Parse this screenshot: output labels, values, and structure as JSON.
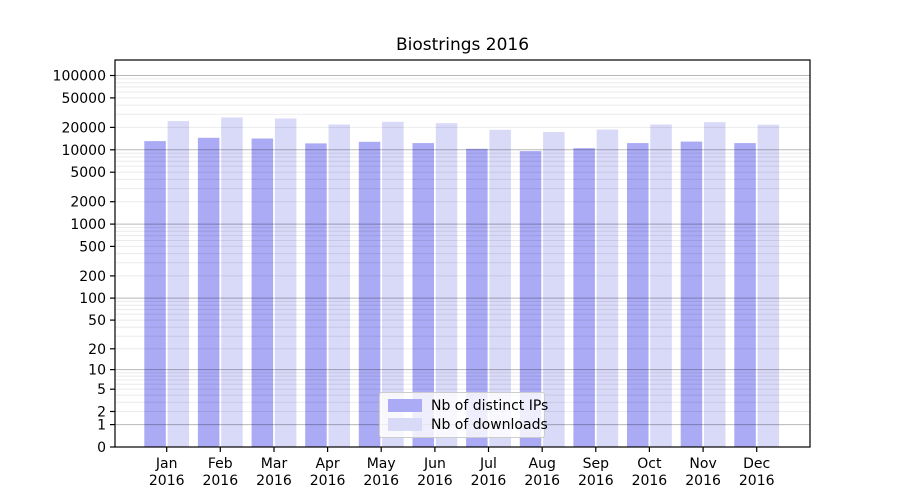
{
  "chart_data": {
    "type": "bar",
    "title": "Biostrings 2016",
    "categories": [
      "Jan",
      "Feb",
      "Mar",
      "Apr",
      "May",
      "Jun",
      "Jul",
      "Aug",
      "Sep",
      "Oct",
      "Nov",
      "Dec"
    ],
    "year": "2016",
    "series": [
      {
        "name": "Nb of distinct IPs",
        "color": "#aaaaf5",
        "values": [
          13100,
          14500,
          14200,
          12200,
          12800,
          12300,
          10300,
          9600,
          10500,
          12300,
          12900,
          12300
        ]
      },
      {
        "name": "Nb of downloads",
        "color": "#d9d9f8",
        "values": [
          24300,
          27200,
          26400,
          21900,
          23800,
          22800,
          18600,
          17300,
          18700,
          21900,
          23500,
          21800
        ]
      }
    ],
    "y_ticks": [
      0,
      1,
      2,
      5,
      10,
      20,
      50,
      100,
      200,
      500,
      1000,
      2000,
      5000,
      10000,
      20000,
      50000,
      100000
    ],
    "y_scale": "log10(1+x)",
    "ylim": [
      0,
      160000
    ],
    "grid": "on",
    "legend_position": "lower center"
  }
}
